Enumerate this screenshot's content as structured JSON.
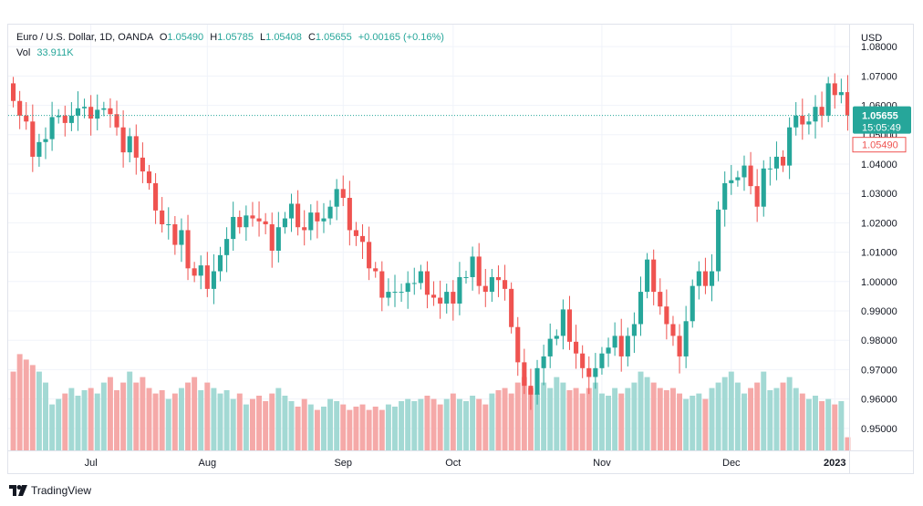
{
  "header": {
    "symbol": "Euro / U.S. Dollar, 1D, OANDA",
    "ohlc": [
      {
        "label": "O",
        "value": "1.05490"
      },
      {
        "label": "H",
        "value": "1.05785"
      },
      {
        "label": "L",
        "value": "1.05408"
      },
      {
        "label": "C",
        "value": "1.05655"
      }
    ],
    "change": "+0.00165 (+0.16%)",
    "vol_label": "Vol",
    "vol_value": "33.911K"
  },
  "price_axis": {
    "currency": "USD",
    "current_price": "1.05655",
    "countdown": "15:05:49",
    "open_price": "1.05490"
  },
  "footer": {
    "brand": "TradingView"
  },
  "colors": {
    "up": "#26a69a",
    "down": "#ef5350",
    "up_volume": "#a3d9d4",
    "down_volume": "#f5a9a8",
    "grid": "#f0f3fa"
  },
  "chart_data": {
    "type": "candlestick",
    "title": "Euro / U.S. Dollar, 1D, OANDA",
    "ylim": [
      0.9425,
      1.0875
    ],
    "y_ticks": [
      1.08,
      1.07,
      1.06,
      1.05,
      1.04,
      1.03,
      1.02,
      1.01,
      1.0,
      0.99,
      0.98,
      0.97,
      0.96,
      0.95
    ],
    "y_tick_labels": [
      "1.08000",
      "1.07000",
      "1.06000",
      "1.05000",
      "1.04000",
      "1.03000",
      "1.02000",
      "1.01000",
      "1.00000",
      "0.99000",
      "0.98000",
      "0.97000",
      "0.96000",
      "0.95000"
    ],
    "x_tick_labels": [
      "Jul",
      "Aug",
      "Sep",
      "Oct",
      "Nov",
      "Dec",
      "2023"
    ],
    "x_tick_bar_index": [
      12,
      30,
      51,
      68,
      91,
      111,
      127
    ],
    "bar_count": 130,
    "close": [
      1.0615,
      1.0565,
      1.0545,
      1.0425,
      1.0475,
      1.0485,
      1.056,
      1.0565,
      1.054,
      1.0565,
      1.059,
      1.0595,
      1.0555,
      1.0585,
      1.059,
      1.057,
      1.0525,
      1.044,
      1.0495,
      1.0422,
      1.0375,
      1.0335,
      1.0242,
      1.0195,
      1.0195,
      1.0125,
      1.0175,
      1.0045,
      1.002,
      1.0055,
      0.9975,
      1.0035,
      1.009,
      1.0145,
      1.022,
      1.0185,
      1.0225,
      1.0215,
      1.0205,
      1.0195,
      1.0105,
      1.0185,
      1.0215,
      1.0265,
      1.0185,
      1.0175,
      1.0235,
      1.0205,
      1.0215,
      1.0255,
      1.0315,
      1.0285,
      1.0175,
      1.0155,
      1.0135,
      1.0045,
      1.0035,
      0.9945,
      0.9965,
      0.9965,
      0.9965,
      0.9995,
      0.9995,
      1.0035,
      0.9955,
      0.9945,
      0.9925,
      0.9965,
      0.9925,
      1.0015,
      1.0015,
      1.0085,
      0.9985,
      0.9965,
      1.0015,
      1.0005,
      0.9975,
      0.9845,
      0.9725,
      0.9645,
      0.9615,
      0.9705,
      0.9745,
      0.9805,
      0.9815,
      0.9905,
      0.9795,
      0.9755,
      0.9705,
      0.9675,
      0.9705,
      0.9755,
      0.9775,
      0.9815,
      0.9745,
      0.9815,
      0.9855,
      0.9965,
      1.0075,
      0.9965,
      0.9915,
      0.9855,
      0.9815,
      0.9745,
      0.9865,
      0.9985,
      1.0035,
      0.9985,
      1.0035,
      1.0245,
      1.0335,
      1.0345,
      1.0355,
      1.0395,
      1.0325,
      1.0255,
      1.0385,
      1.0385,
      1.0425,
      1.0395,
      1.0525,
      1.0565,
      1.0535,
      1.0545,
      1.0595,
      1.0565,
      1.0675,
      1.0635,
      1.0645,
      1.0566
    ],
    "volume_relative": [
      0.72,
      0.88,
      0.83,
      0.78,
      0.72,
      0.62,
      0.42,
      0.47,
      0.52,
      0.57,
      0.5,
      0.55,
      0.57,
      0.52,
      0.62,
      0.67,
      0.55,
      0.62,
      0.72,
      0.62,
      0.67,
      0.57,
      0.52,
      0.55,
      0.47,
      0.52,
      0.57,
      0.62,
      0.67,
      0.55,
      0.62,
      0.57,
      0.52,
      0.55,
      0.47,
      0.52,
      0.42,
      0.47,
      0.5,
      0.45,
      0.52,
      0.57,
      0.5,
      0.45,
      0.4,
      0.47,
      0.42,
      0.37,
      0.4,
      0.47,
      0.45,
      0.42,
      0.37,
      0.4,
      0.42,
      0.37,
      0.4,
      0.37,
      0.42,
      0.4,
      0.45,
      0.47,
      0.45,
      0.47,
      0.5,
      0.47,
      0.42,
      0.47,
      0.52,
      0.47,
      0.45,
      0.5,
      0.47,
      0.42,
      0.52,
      0.55,
      0.57,
      0.52,
      0.62,
      0.67,
      0.57,
      0.52,
      0.62,
      0.57,
      0.67,
      0.62,
      0.55,
      0.57,
      0.52,
      0.57,
      0.62,
      0.52,
      0.5,
      0.57,
      0.52,
      0.57,
      0.62,
      0.72,
      0.67,
      0.62,
      0.57,
      0.55,
      0.57,
      0.52,
      0.47,
      0.5,
      0.52,
      0.47,
      0.57,
      0.62,
      0.67,
      0.72,
      0.62,
      0.52,
      0.57,
      0.62,
      0.72,
      0.55,
      0.57,
      0.62,
      0.67,
      0.57,
      0.52,
      0.47,
      0.5,
      0.45,
      0.47,
      0.42,
      0.45,
      0.12
    ],
    "current_price": 1.05655
  }
}
